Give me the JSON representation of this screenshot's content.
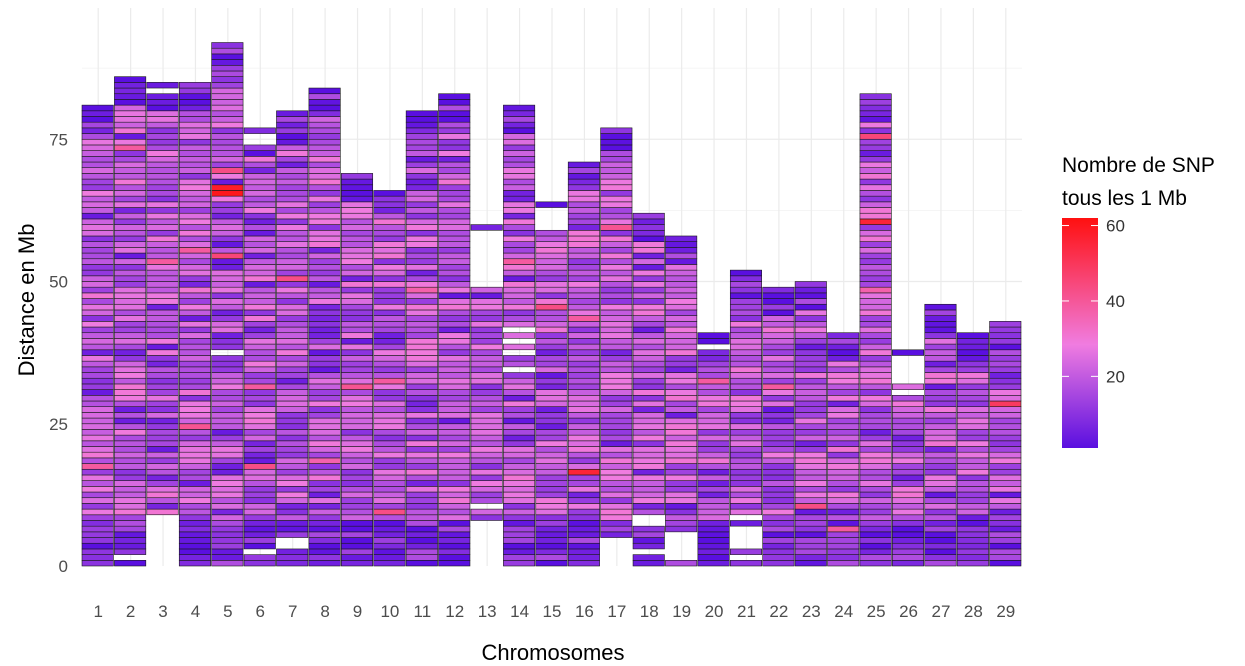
{
  "chart_data": {
    "type": "heatmap",
    "title": "",
    "xlabel": "Chromosomes",
    "ylabel": "Distance en Mb",
    "categories": [
      "1",
      "2",
      "3",
      "4",
      "5",
      "6",
      "7",
      "8",
      "9",
      "10",
      "11",
      "12",
      "13",
      "14",
      "15",
      "16",
      "17",
      "18",
      "19",
      "20",
      "21",
      "22",
      "23",
      "24",
      "25",
      "26",
      "27",
      "28",
      "29"
    ],
    "chromosome_lengths_mb": [
      81,
      86,
      85,
      85,
      92,
      77,
      80,
      84,
      69,
      67,
      80,
      83,
      60,
      81,
      64,
      71,
      77,
      62,
      58,
      41,
      52,
      49,
      50,
      41,
      83,
      38,
      46,
      41,
      43
    ],
    "bin_size_mb": 1,
    "gaps_mb": [
      {
        "chromosome": "2",
        "start": 1,
        "end": 2
      },
      {
        "chromosome": "3",
        "start": 0,
        "end": 9
      },
      {
        "chromosome": "3",
        "start": 83,
        "end": 84
      },
      {
        "chromosome": "5",
        "start": 37,
        "end": 38
      },
      {
        "chromosome": "6",
        "start": 2,
        "end": 3
      },
      {
        "chromosome": "6",
        "start": 74,
        "end": 76
      },
      {
        "chromosome": "7",
        "start": 3,
        "end": 5
      },
      {
        "chromosome": "10",
        "start": 66,
        "end": 67
      },
      {
        "chromosome": "13",
        "start": 0,
        "end": 8
      },
      {
        "chromosome": "13",
        "start": 10,
        "end": 11
      },
      {
        "chromosome": "13",
        "start": 49,
        "end": 59
      },
      {
        "chromosome": "14",
        "start": 34,
        "end": 35
      },
      {
        "chromosome": "14",
        "start": 37,
        "end": 38
      },
      {
        "chromosome": "14",
        "start": 39,
        "end": 40
      },
      {
        "chromosome": "14",
        "start": 41,
        "end": 42
      },
      {
        "chromosome": "15",
        "start": 59,
        "end": 63
      },
      {
        "chromosome": "17",
        "start": 0,
        "end": 5
      },
      {
        "chromosome": "18",
        "start": 2,
        "end": 3
      },
      {
        "chromosome": "18",
        "start": 7,
        "end": 9
      },
      {
        "chromosome": "19",
        "start": 1,
        "end": 6
      },
      {
        "chromosome": "20",
        "start": 38,
        "end": 39
      },
      {
        "chromosome": "21",
        "start": 1,
        "end": 2
      },
      {
        "chromosome": "21",
        "start": 3,
        "end": 7
      },
      {
        "chromosome": "21",
        "start": 8,
        "end": 9
      },
      {
        "chromosome": "26",
        "start": 30,
        "end": 31
      },
      {
        "chromosome": "26",
        "start": 32,
        "end": 37
      }
    ],
    "hotspots": [
      {
        "chromosome": "1",
        "position_mb": 17,
        "snp_count": 40
      },
      {
        "chromosome": "2",
        "position_mb": 73,
        "snp_count": 40
      },
      {
        "chromosome": "3",
        "position_mb": 53,
        "snp_count": 40
      },
      {
        "chromosome": "4",
        "position_mb": 24,
        "snp_count": 42
      },
      {
        "chromosome": "4",
        "position_mb": 55,
        "snp_count": 40
      },
      {
        "chromosome": "5",
        "position_mb": 65,
        "snp_count": 60
      },
      {
        "chromosome": "5",
        "position_mb": 66,
        "snp_count": 58
      },
      {
        "chromosome": "5",
        "position_mb": 54,
        "snp_count": 46
      },
      {
        "chromosome": "5",
        "position_mb": 69,
        "snp_count": 44
      },
      {
        "chromosome": "6",
        "position_mb": 17,
        "snp_count": 44
      },
      {
        "chromosome": "6",
        "position_mb": 31,
        "snp_count": 40
      },
      {
        "chromosome": "7",
        "position_mb": 50,
        "snp_count": 44
      },
      {
        "chromosome": "8",
        "position_mb": 18,
        "snp_count": 38
      },
      {
        "chromosome": "9",
        "position_mb": 31,
        "snp_count": 42
      },
      {
        "chromosome": "10",
        "position_mb": 9,
        "snp_count": 44
      },
      {
        "chromosome": "10",
        "position_mb": 32,
        "snp_count": 40
      },
      {
        "chromosome": "11",
        "position_mb": 48,
        "snp_count": 38
      },
      {
        "chromosome": "14",
        "position_mb": 53,
        "snp_count": 40
      },
      {
        "chromosome": "15",
        "position_mb": 45,
        "snp_count": 44
      },
      {
        "chromosome": "16",
        "position_mb": 16,
        "snp_count": 56
      },
      {
        "chromosome": "16",
        "position_mb": 43,
        "snp_count": 40
      },
      {
        "chromosome": "17",
        "position_mb": 59,
        "snp_count": 42
      },
      {
        "chromosome": "20",
        "position_mb": 32,
        "snp_count": 40
      },
      {
        "chromosome": "22",
        "position_mb": 31,
        "snp_count": 40
      },
      {
        "chromosome": "23",
        "position_mb": 10,
        "snp_count": 44
      },
      {
        "chromosome": "24",
        "position_mb": 6,
        "snp_count": 40
      },
      {
        "chromosome": "25",
        "position_mb": 60,
        "snp_count": 56
      },
      {
        "chromosome": "25",
        "position_mb": 75,
        "snp_count": 46
      },
      {
        "chromosome": "25",
        "position_mb": 48,
        "snp_count": 38
      },
      {
        "chromosome": "29",
        "position_mb": 28,
        "snp_count": 50
      }
    ],
    "ylim": [
      0,
      96
    ],
    "y_ticks": [
      0,
      25,
      50,
      75
    ],
    "grid": true,
    "legend": {
      "title_line1": "Nombre de SNP",
      "title_line2": "tous les 1 Mb",
      "placement": "right",
      "ticks": [
        20,
        40,
        60
      ],
      "color_low": "#5a0fe0",
      "color_mid": "#f07ce0",
      "color_high": "#ff1010",
      "range": [
        1,
        62
      ]
    }
  }
}
